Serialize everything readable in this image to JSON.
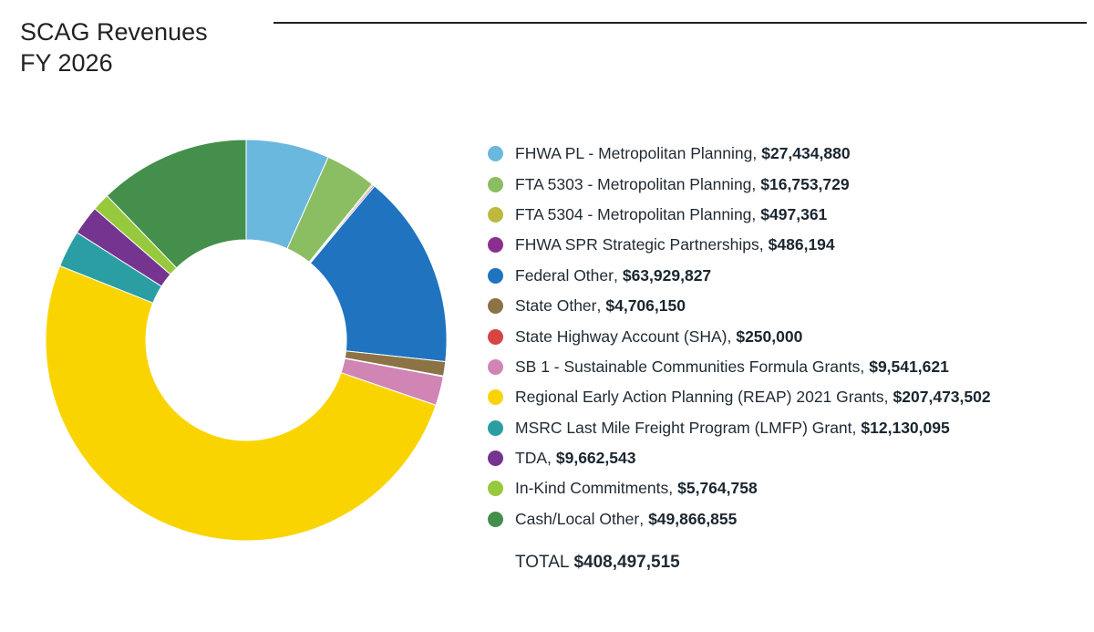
{
  "title_line1": "SCAG Revenues",
  "title_line2": "FY 2026",
  "total_label": "TOTAL",
  "total_value": "$408,497,515",
  "chart_data": {
    "type": "pie",
    "donut": true,
    "legend_position": "right",
    "title": "SCAG Revenues FY 2026",
    "slices": [
      {
        "label": "FHWA PL - Metropolitan Planning",
        "display": "$27,434,880",
        "value": 27434880,
        "color": "#6bb8de"
      },
      {
        "label": "FTA 5303 - Metropolitan Planning",
        "display": "$16,753,729",
        "value": 16753729,
        "color": "#8bbd63"
      },
      {
        "label": "FTA 5304 - Metropolitan Planning",
        "display": "$497,361",
        "value": 497361,
        "color": "#bdb93f"
      },
      {
        "label": "FHWA SPR Strategic Partnerships",
        "display": "$486,194",
        "value": 486194,
        "color": "#8a2f8f"
      },
      {
        "label": "Federal Other",
        "display": "$63,929,827",
        "value": 63929827,
        "color": "#1f73bf"
      },
      {
        "label": "State Other",
        "display": "$4,706,150",
        "value": 4706150,
        "color": "#8b7346"
      },
      {
        "label": "State Highway Account (SHA)",
        "display": "$250,000",
        "value": 250000,
        "color": "#d64541"
      },
      {
        "label": "SB 1 - Sustainable Communities Formula Grants",
        "display": "$9,541,621",
        "value": 9541621,
        "color": "#d085b5"
      },
      {
        "label": "Regional Early Action Planning (REAP) 2021 Grants",
        "display": "$207,473,502",
        "value": 207473502,
        "color": "#fad400"
      },
      {
        "label": "MSRC Last Mile Freight Program (LMFP) Grant",
        "display": "$12,130,095",
        "value": 12130095,
        "color": "#2a9ea3"
      },
      {
        "label": "TDA",
        "display": "$9,662,543",
        "value": 9662543,
        "color": "#74348f"
      },
      {
        "label": "In-Kind Commitments",
        "display": "$5,764,758",
        "value": 5764758,
        "color": "#97c93d"
      },
      {
        "label": "Cash/Local Other",
        "display": "$49,866,855",
        "value": 49866855,
        "color": "#448f4b"
      }
    ]
  }
}
